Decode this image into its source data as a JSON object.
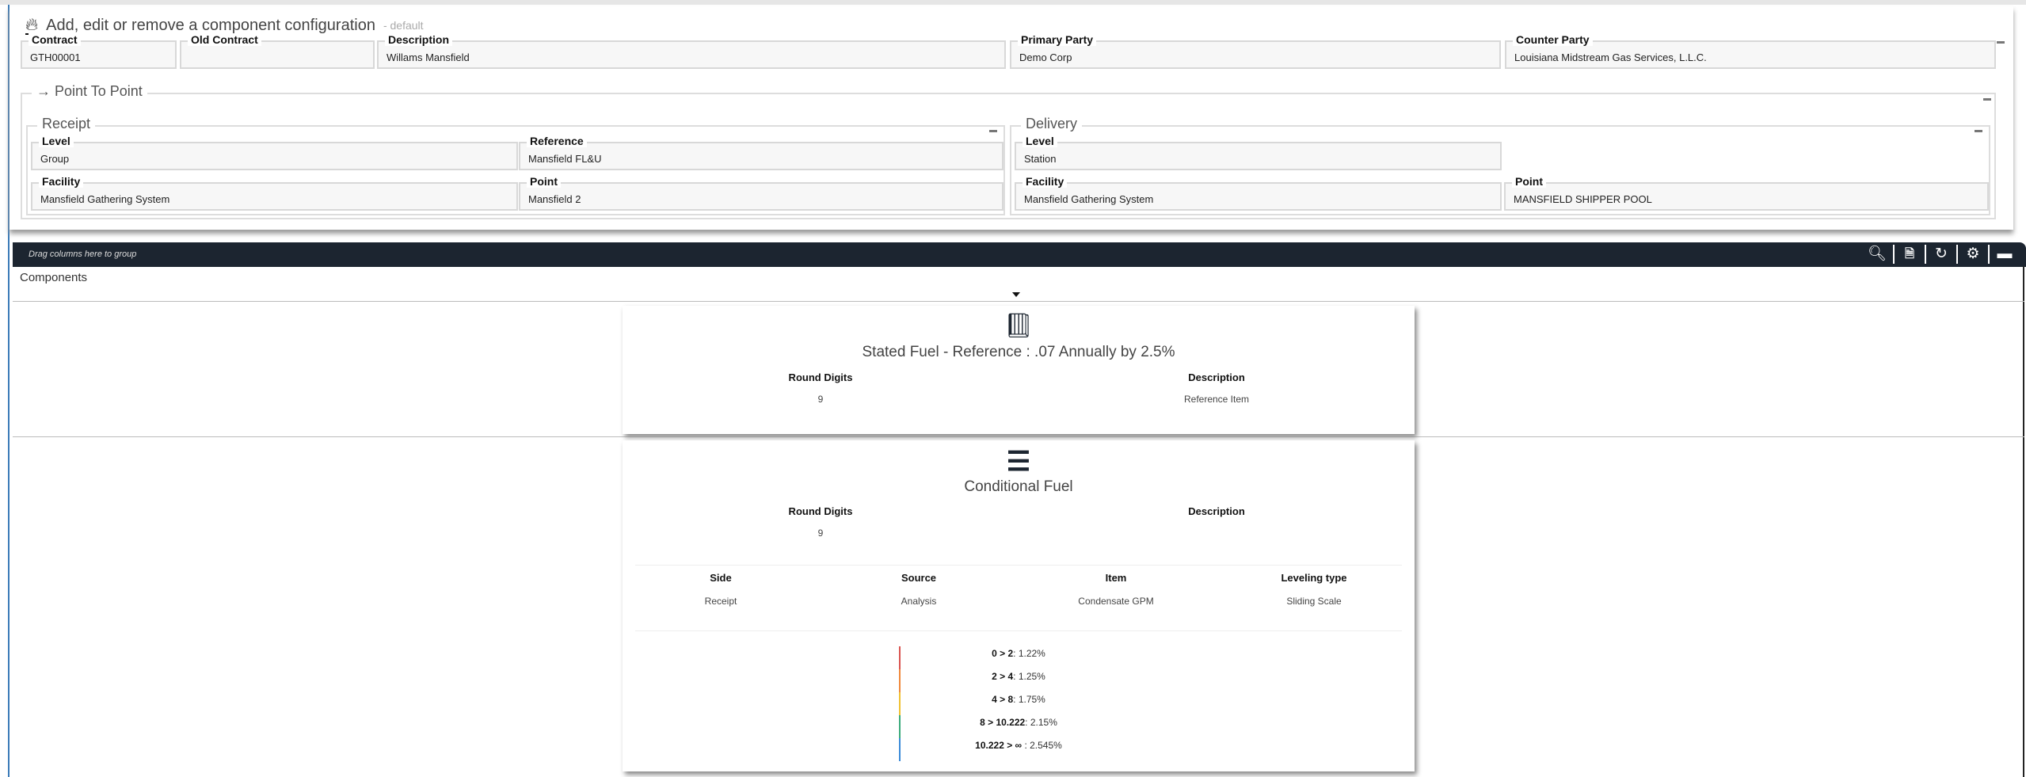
{
  "header": {
    "title": "Add, edit or remove a component configuration",
    "subtitle": "- default",
    "icon": "fire-icon"
  },
  "contract_fields": [
    {
      "label": "Contract",
      "value": "GTH00001"
    },
    {
      "label": "Old Contract",
      "value": ""
    },
    {
      "label": "Description",
      "value": "Willams Mansfield"
    },
    {
      "label": "Primary Party",
      "value": "Demo Corp"
    },
    {
      "label": "Counter Party",
      "value": "Louisiana Midstream Gas Services, L.L.C."
    }
  ],
  "point_to_point": {
    "legend": "Point To Point",
    "receipt": {
      "legend": "Receipt",
      "level": {
        "label": "Level",
        "value": "Group"
      },
      "reference": {
        "label": "Reference",
        "value": "Mansfield FL&U"
      },
      "facility": {
        "label": "Facility",
        "value": "Mansfield Gathering System"
      },
      "point": {
        "label": "Point",
        "value": "Mansfield 2"
      }
    },
    "delivery": {
      "legend": "Delivery",
      "level": {
        "label": "Level",
        "value": "Station"
      },
      "facility": {
        "label": "Facility",
        "value": "Mansfield Gathering System"
      },
      "point": {
        "label": "Point",
        "value": "MANSFIELD SHIPPER POOL"
      }
    }
  },
  "grid": {
    "drag_hint": "Drag columns here to group",
    "column": "Components",
    "toolbar_icons": [
      "search-icon",
      "excel-export-icon",
      "refresh-icon",
      "settings-icon",
      "maximize-icon"
    ]
  },
  "cards": [
    {
      "icon": "book-icon",
      "title": "Stated Fuel - Reference : .07 Annually by 2.5%",
      "round_digits_label": "Round Digits",
      "round_digits": "9",
      "description_label": "Description",
      "description": "Reference Item"
    },
    {
      "icon": "bars-icon",
      "title": "Conditional Fuel",
      "round_digits_label": "Round Digits",
      "round_digits": "9",
      "description_label": "Description",
      "description": "",
      "table": {
        "headers": [
          "Side",
          "Source",
          "Item",
          "Leveling type"
        ],
        "values": [
          "Receipt",
          "Analysis",
          "Condensate GPM",
          "Sliding Scale"
        ]
      },
      "levels": [
        {
          "range": "0 > 2",
          "value": ": 1.22%",
          "color": "#d9534f"
        },
        {
          "range": "2 > 4",
          "value": ": 1.25%",
          "color": "#f0883a"
        },
        {
          "range": "4 > 8",
          "value": ": 1.75%",
          "color": "#f0c030"
        },
        {
          "range": "8 > 10.222",
          "value": ": 2.15%",
          "color": "#3aaa7a"
        },
        {
          "range": "10.222 > ∞",
          "value": " : 2.545%",
          "color": "#3a8ad8"
        }
      ]
    }
  ]
}
